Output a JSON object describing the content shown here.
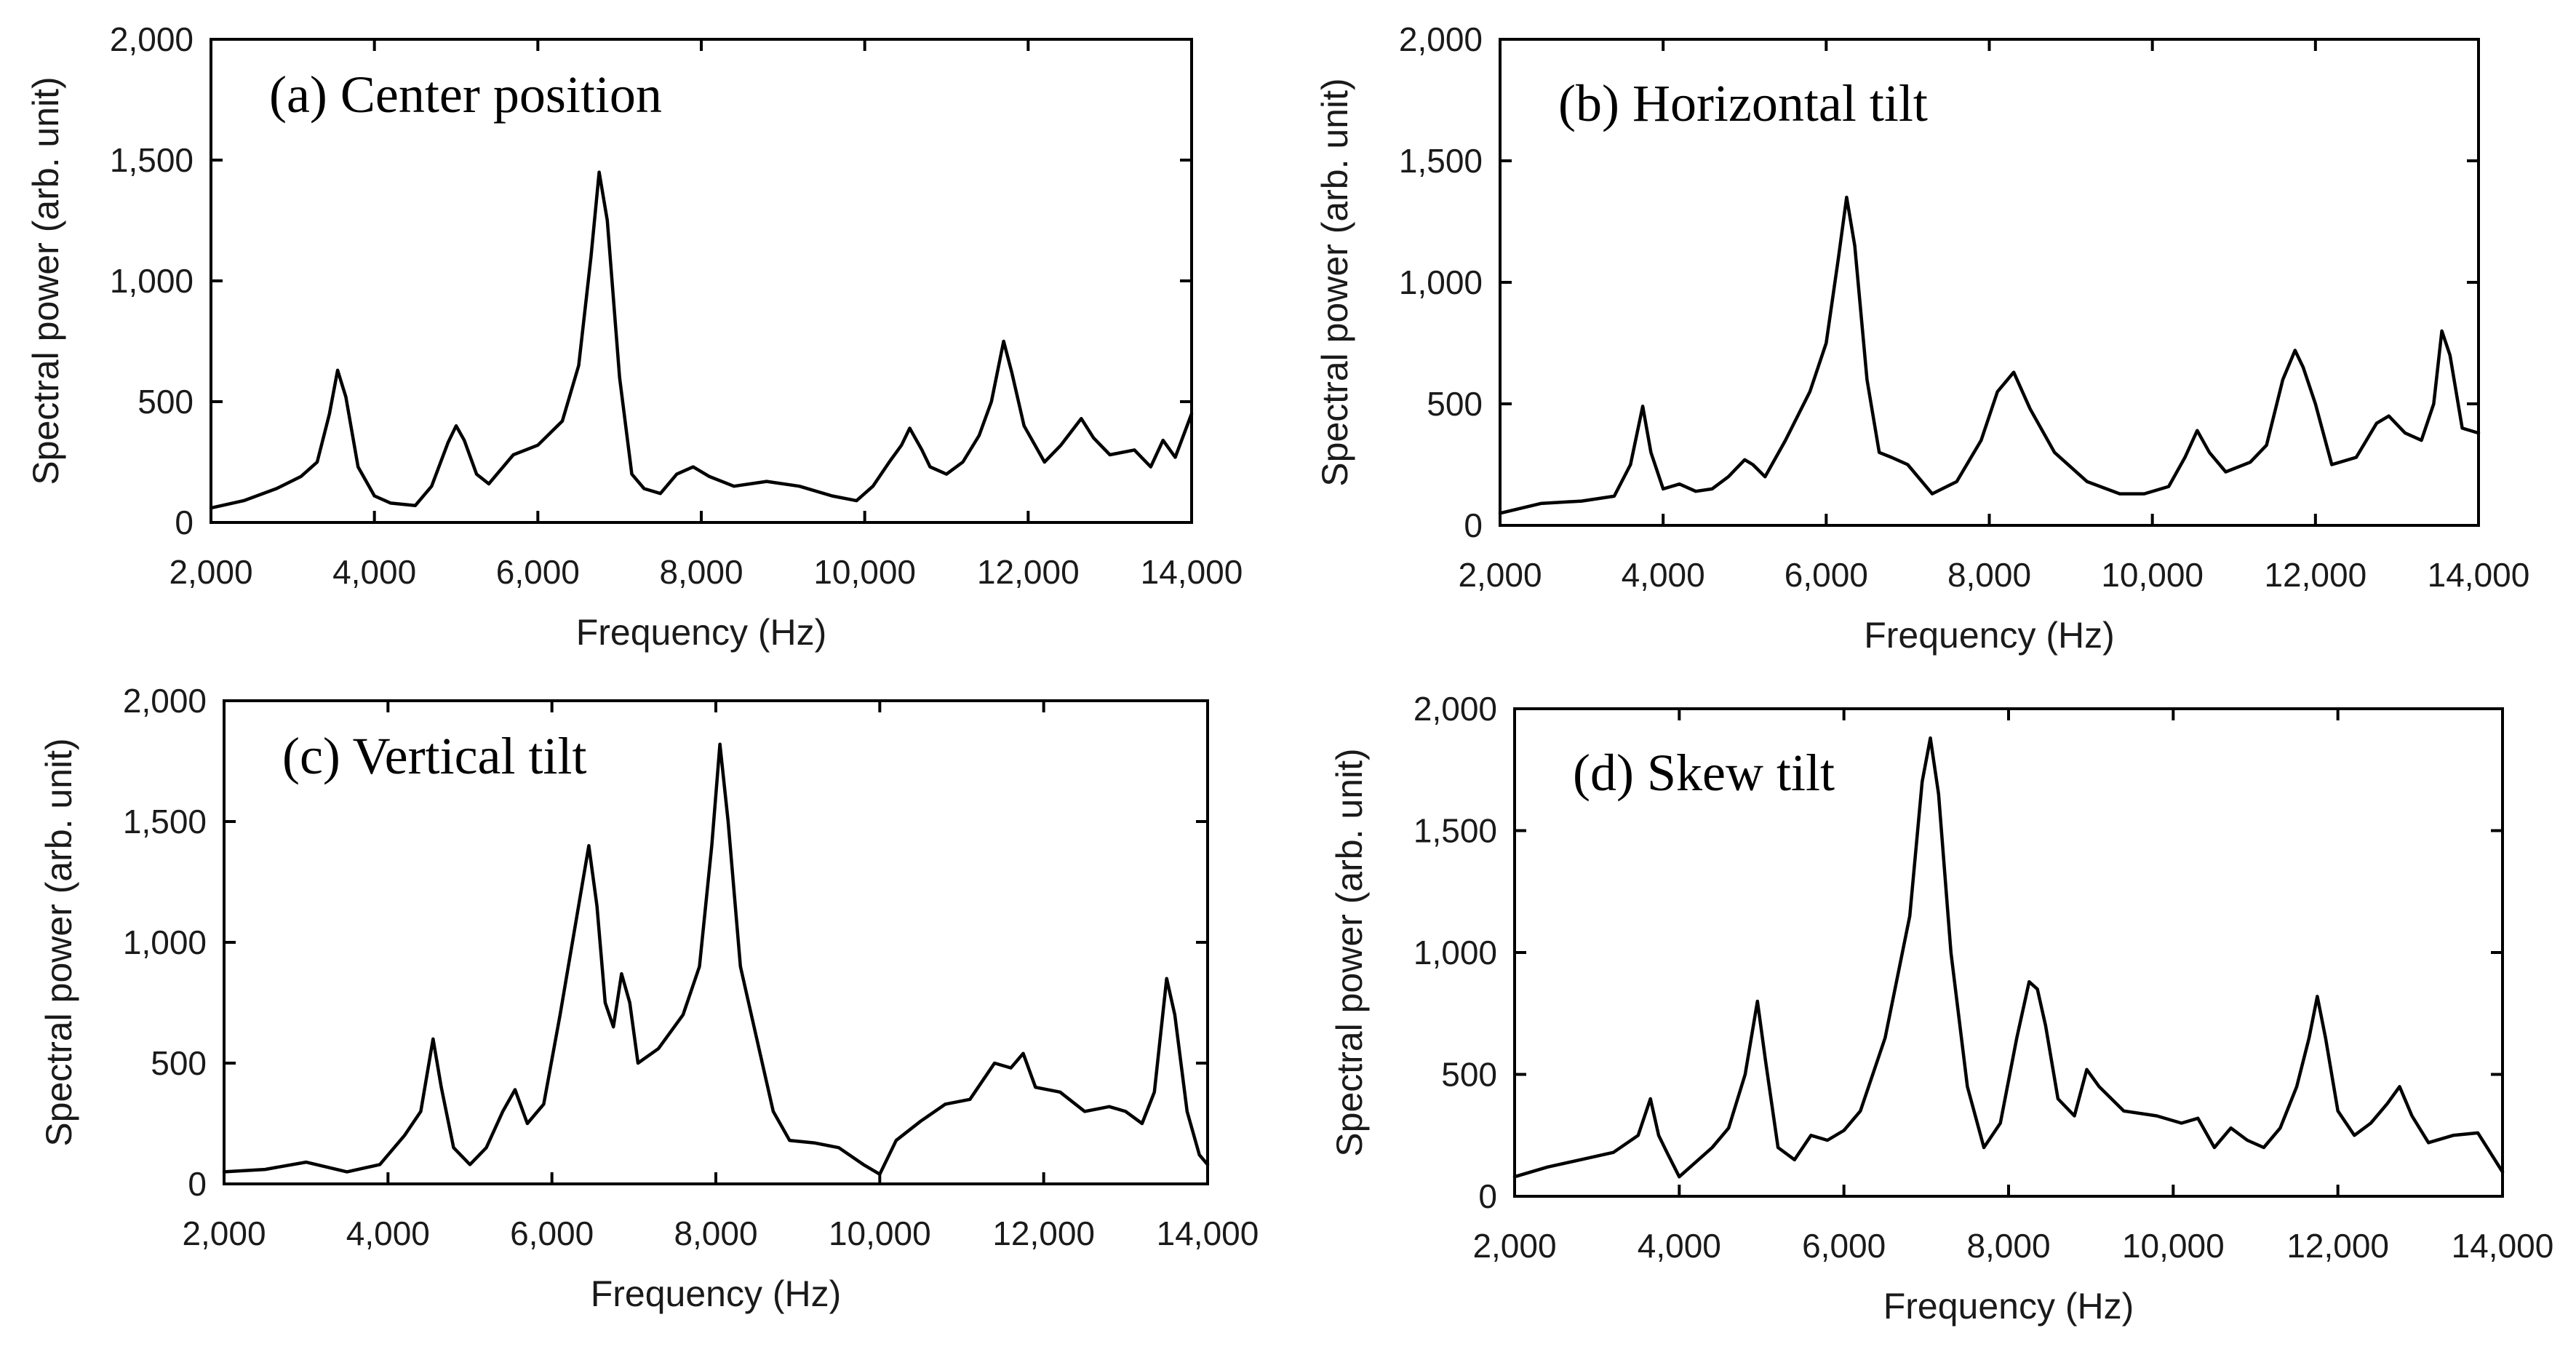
{
  "chart_data": [
    {
      "type": "line",
      "title": "(a) Center position",
      "xlabel": "Frequency (Hz)",
      "ylabel": "Spectral power (arb. unit)",
      "xlim": [
        2000,
        14000
      ],
      "ylim": [
        0,
        2000
      ],
      "xticks": [
        2000,
        4000,
        6000,
        8000,
        10000,
        12000,
        14000
      ],
      "xtick_labels": [
        "2,000",
        "4,000",
        "6,000",
        "8,000",
        "10,000",
        "12,000",
        "14,000"
      ],
      "yticks": [
        0,
        500,
        1000,
        1500,
        2000
      ],
      "ytick_labels": [
        "0",
        "500",
        "1,000",
        "1,500",
        "2,000"
      ],
      "grid": false,
      "series": [
        {
          "name": "Center position",
          "x": [
            2000,
            2400,
            2800,
            3100,
            3300,
            3450,
            3550,
            3650,
            3800,
            4000,
            4200,
            4500,
            4700,
            4900,
            5000,
            5100,
            5250,
            5400,
            5700,
            6000,
            6300,
            6500,
            6650,
            6750,
            6850,
            7000,
            7150,
            7300,
            7500,
            7700,
            7900,
            8100,
            8400,
            8800,
            9200,
            9600,
            9900,
            10100,
            10300,
            10450,
            10550,
            10700,
            10800,
            11000,
            11200,
            11400,
            11550,
            11700,
            11800,
            11950,
            12200,
            12400,
            12650,
            12800,
            13000,
            13300,
            13500,
            13650,
            13800,
            14000
          ],
          "y": [
            60,
            90,
            140,
            190,
            250,
            450,
            630,
            520,
            230,
            110,
            80,
            70,
            150,
            330,
            400,
            340,
            200,
            160,
            280,
            320,
            420,
            650,
            1100,
            1450,
            1250,
            600,
            200,
            140,
            120,
            200,
            230,
            190,
            150,
            170,
            150,
            110,
            90,
            150,
            250,
            320,
            390,
            300,
            230,
            200,
            250,
            360,
            500,
            750,
            620,
            400,
            250,
            320,
            430,
            350,
            280,
            300,
            230,
            340,
            270,
            450
          ]
        }
      ]
    },
    {
      "type": "line",
      "title": "(b) Horizontal tilt",
      "xlabel": "Frequency (Hz)",
      "ylabel": "Spectral power (arb. unit)",
      "xlim": [
        2000,
        14000
      ],
      "ylim": [
        0,
        2000
      ],
      "xticks": [
        2000,
        4000,
        6000,
        8000,
        10000,
        12000,
        14000
      ],
      "xtick_labels": [
        "2,000",
        "4,000",
        "6,000",
        "8,000",
        "10,000",
        "12,000",
        "14,000"
      ],
      "yticks": [
        0,
        500,
        1000,
        1500,
        2000
      ],
      "ytick_labels": [
        "0",
        "500",
        "1,000",
        "1,500",
        "2,000"
      ],
      "grid": false,
      "series": [
        {
          "name": "Horizontal tilt",
          "x": [
            2000,
            2500,
            3000,
            3400,
            3600,
            3750,
            3850,
            4000,
            4200,
            4400,
            4600,
            4800,
            5000,
            5100,
            5250,
            5500,
            5800,
            6000,
            6150,
            6250,
            6350,
            6500,
            6650,
            6800,
            7000,
            7300,
            7600,
            7900,
            8100,
            8300,
            8500,
            8800,
            9200,
            9600,
            9900,
            10200,
            10400,
            10550,
            10700,
            10900,
            11200,
            11400,
            11600,
            11750,
            11850,
            12000,
            12200,
            12500,
            12750,
            12900,
            13100,
            13300,
            13450,
            13550,
            13650,
            13800,
            14000
          ],
          "y": [
            50,
            90,
            100,
            120,
            250,
            490,
            300,
            150,
            170,
            140,
            150,
            200,
            270,
            250,
            200,
            350,
            550,
            750,
            1100,
            1350,
            1150,
            600,
            300,
            280,
            250,
            130,
            180,
            350,
            550,
            630,
            480,
            300,
            180,
            130,
            130,
            160,
            280,
            390,
            300,
            220,
            260,
            330,
            600,
            720,
            650,
            500,
            250,
            280,
            420,
            450,
            380,
            350,
            500,
            800,
            700,
            400,
            380
          ]
        }
      ]
    },
    {
      "type": "line",
      "title": "(c) Vertical tilt",
      "xlabel": "Frequency (Hz)",
      "ylabel": "Spectral power (arb. unit)",
      "xlim": [
        2000,
        14000
      ],
      "ylim": [
        0,
        2000
      ],
      "xticks": [
        2000,
        4000,
        6000,
        8000,
        10000,
        12000,
        14000
      ],
      "xtick_labels": [
        "2,000",
        "4,000",
        "6,000",
        "8,000",
        "10,000",
        "12,000",
        "14,000"
      ],
      "yticks": [
        0,
        500,
        1000,
        1500,
        2000
      ],
      "ytick_labels": [
        "0",
        "500",
        "1,000",
        "1,500",
        "2,000"
      ],
      "grid": false,
      "series": [
        {
          "name": "Vertical tilt",
          "x": [
            2000,
            2500,
            3000,
            3500,
            3900,
            4200,
            4400,
            4550,
            4650,
            4800,
            5000,
            5200,
            5400,
            5550,
            5700,
            5900,
            6100,
            6300,
            6450,
            6550,
            6650,
            6750,
            6850,
            6950,
            7050,
            7300,
            7600,
            7800,
            7950,
            8050,
            8150,
            8300,
            8500,
            8700,
            8900,
            9200,
            9500,
            9800,
            10000,
            10200,
            10500,
            10800,
            11100,
            11400,
            11600,
            11750,
            11900,
            12200,
            12500,
            12800,
            13000,
            13200,
            13350,
            13500,
            13600,
            13750,
            13900,
            14000
          ],
          "y": [
            50,
            60,
            90,
            50,
            80,
            200,
            300,
            600,
            400,
            150,
            80,
            150,
            300,
            390,
            250,
            330,
            700,
            1100,
            1400,
            1150,
            750,
            650,
            870,
            750,
            500,
            560,
            700,
            900,
            1400,
            1820,
            1500,
            900,
            600,
            300,
            180,
            170,
            150,
            80,
            40,
            180,
            260,
            330,
            350,
            500,
            480,
            540,
            400,
            380,
            300,
            320,
            300,
            250,
            380,
            850,
            700,
            300,
            120,
            80
          ]
        }
      ]
    },
    {
      "type": "line",
      "title": "(d) Skew tilt",
      "xlabel": "Frequency (Hz)",
      "ylabel": "Spectral power (arb. unit)",
      "xlim": [
        2000,
        14000
      ],
      "ylim": [
        0,
        2000
      ],
      "xticks": [
        2000,
        4000,
        6000,
        8000,
        10000,
        12000,
        14000
      ],
      "xtick_labels": [
        "2,000",
        "4,000",
        "6,000",
        "8,000",
        "10,000",
        "12,000",
        "14,000"
      ],
      "yticks": [
        0,
        500,
        1000,
        1500,
        2000
      ],
      "ytick_labels": [
        "0",
        "500",
        "1,000",
        "1,500",
        "2,000"
      ],
      "grid": false,
      "series": [
        {
          "name": "Skew tilt",
          "x": [
            2000,
            2400,
            2800,
            3200,
            3500,
            3650,
            3750,
            3850,
            4000,
            4200,
            4400,
            4600,
            4800,
            4950,
            5050,
            5200,
            5400,
            5600,
            5800,
            6000,
            6200,
            6500,
            6800,
            6950,
            7050,
            7150,
            7300,
            7500,
            7700,
            7900,
            8100,
            8250,
            8350,
            8450,
            8600,
            8800,
            8950,
            9100,
            9400,
            9800,
            10100,
            10300,
            10500,
            10700,
            10900,
            11100,
            11300,
            11500,
            11650,
            11750,
            11850,
            12000,
            12200,
            12400,
            12600,
            12750,
            12900,
            13100,
            13400,
            13700,
            14000
          ],
          "y": [
            80,
            120,
            150,
            180,
            250,
            400,
            250,
            180,
            80,
            140,
            200,
            280,
            500,
            800,
            550,
            200,
            150,
            250,
            230,
            270,
            350,
            650,
            1150,
            1700,
            1880,
            1650,
            1000,
            450,
            200,
            300,
            650,
            880,
            850,
            700,
            400,
            330,
            520,
            450,
            350,
            330,
            300,
            320,
            200,
            280,
            230,
            200,
            280,
            450,
            650,
            820,
            650,
            350,
            250,
            300,
            380,
            450,
            330,
            220,
            250,
            260,
            100
          ]
        }
      ]
    }
  ]
}
